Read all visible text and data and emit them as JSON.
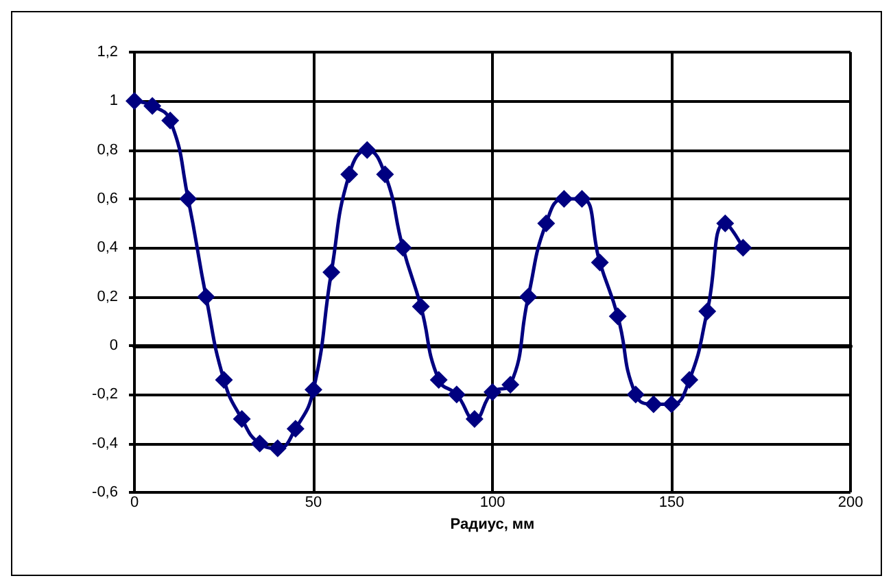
{
  "chart_data": {
    "type": "line",
    "xlabel": "Радиус, мм",
    "series": [
      {
        "color": "#000080",
        "x": [
          0,
          5,
          10,
          15,
          20,
          25,
          30,
          35,
          40,
          45,
          50,
          55,
          60,
          65,
          70,
          75,
          80,
          85,
          90,
          95,
          100,
          105,
          110,
          115,
          120,
          125,
          130,
          135,
          140,
          145,
          150,
          155,
          160,
          165,
          170
        ],
        "values": [
          1.0,
          0.98,
          0.92,
          0.6,
          0.2,
          -0.14,
          -0.3,
          -0.4,
          -0.42,
          -0.34,
          -0.18,
          0.3,
          0.7,
          0.8,
          0.7,
          0.4,
          0.16,
          -0.14,
          -0.2,
          -0.3,
          -0.19,
          -0.16,
          0.2,
          0.5,
          0.6,
          0.6,
          0.34,
          0.12,
          -0.2,
          -0.24,
          -0.24,
          -0.14,
          0.14,
          0.5,
          0.4
        ]
      }
    ],
    "xlim": [
      0,
      200
    ],
    "xticks": [
      0,
      50,
      100,
      150,
      200
    ],
    "ylim": [
      -0.6,
      1.2
    ],
    "yticks": [
      {
        "value": -0.6,
        "label": "-0,6"
      },
      {
        "value": -0.4,
        "label": "-0,4"
      },
      {
        "value": -0.2,
        "label": "-0,2"
      },
      0,
      {
        "value": 0.2,
        "label": "0,2"
      },
      {
        "value": 0.4,
        "label": "0,4"
      },
      {
        "value": 0.6,
        "label": "0,6"
      },
      {
        "value": 0.8,
        "label": "0,8"
      },
      1,
      {
        "value": 1.2,
        "label": "1,2"
      }
    ],
    "grid": true,
    "marker": "diamond",
    "line_style": "solid"
  }
}
